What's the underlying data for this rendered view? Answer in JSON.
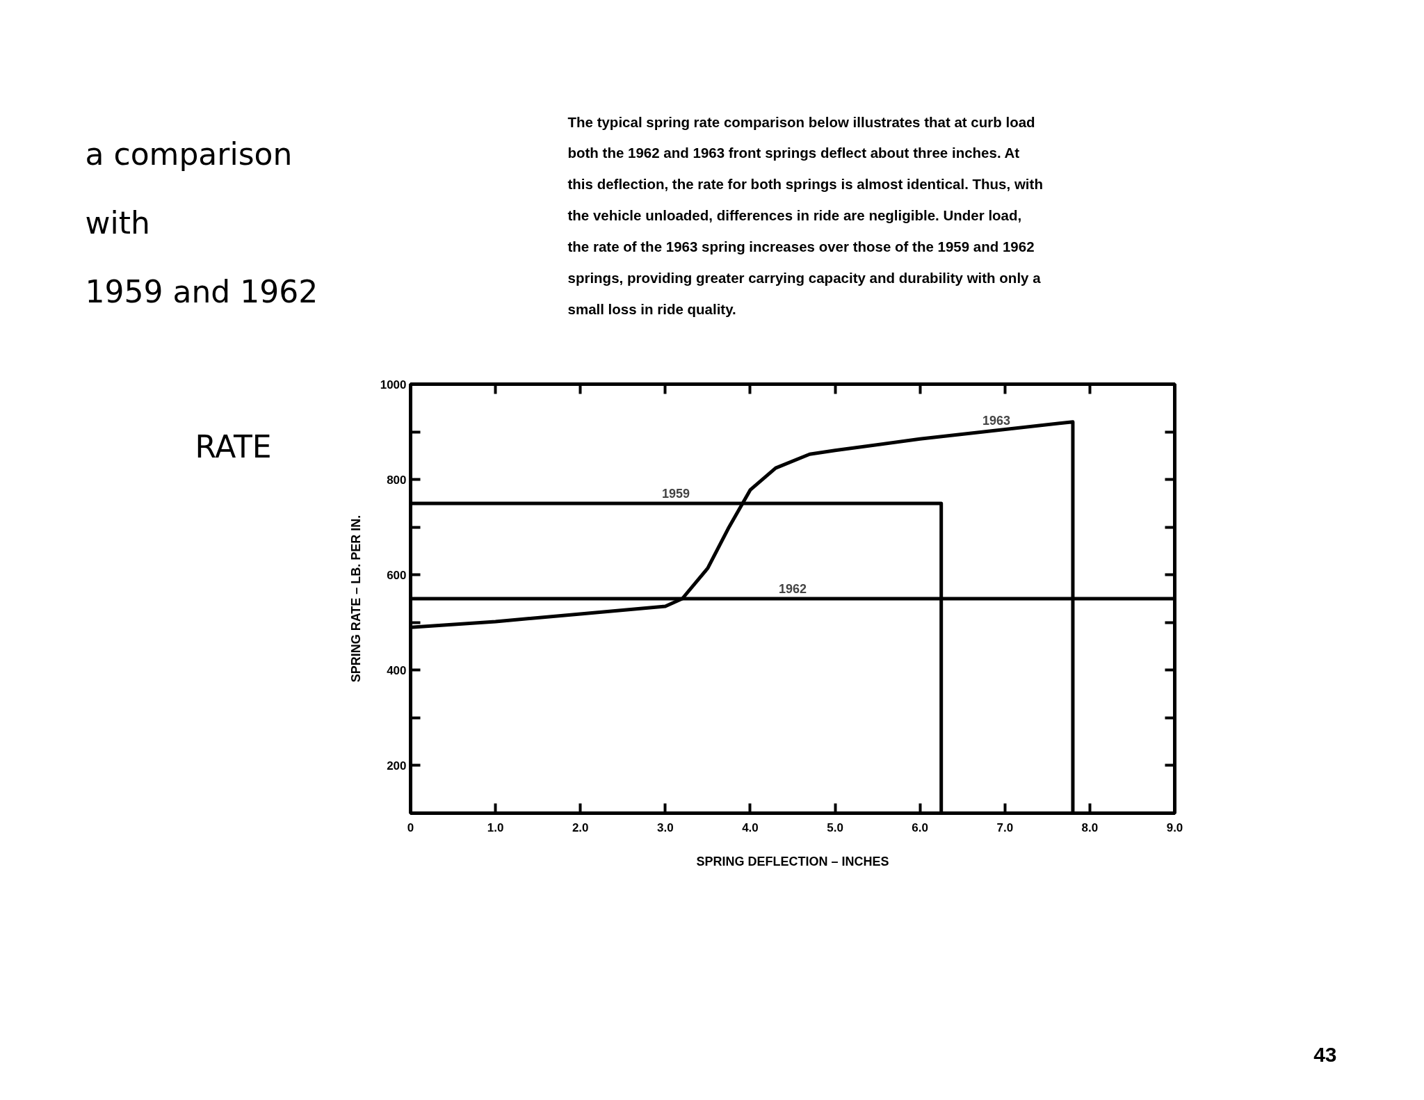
{
  "chart_data": {
    "type": "line",
    "title": "a comparison\nwith\n1959 and 1962",
    "subtitle": "The typical spring rate comparison below illustrates that at curb load\nboth the 1962 and 1963 front springs deflect about three inches.  At\nthis deflection, the rate for both springs is almost identical. Thus, with\nthe vehicle unloaded, differences in ride are negligible.  Under load,\nthe rate of the 1963 spring increases over those of the 1959 and 1962\nsprings, providing greater carrying capacity and durability with only a\nsmall loss in ride quality.",
    "xlabel": "SPRING DEFLECTION – INCHES",
    "ylabel": "SPRING RATE – LB. PER IN.",
    "annotations": [
      "RATE",
      "43"
    ],
    "xlim": [
      0,
      9
    ],
    "ylim": [
      100,
      1000
    ],
    "xticks": [
      0,
      {
        "value": 1,
        "label": "1.0"
      },
      {
        "value": 2,
        "label": "2.0"
      },
      {
        "value": 3,
        "label": "3.0"
      },
      {
        "value": 4,
        "label": "4.0"
      },
      {
        "value": 5,
        "label": "5.0"
      },
      {
        "value": 6,
        "label": "6.0"
      },
      {
        "value": 7,
        "label": "7.0"
      },
      {
        "value": 8,
        "label": "8.0"
      },
      {
        "value": 9,
        "label": "9.0"
      }
    ],
    "yticks": [
      {
        "value": 100,
        "label": null
      },
      200,
      {
        "value": 300,
        "label": null
      },
      400,
      {
        "value": 500,
        "label": null
      },
      600,
      {
        "value": 700,
        "label": null
      },
      800,
      {
        "value": 900,
        "label": null
      },
      1000
    ],
    "grid": false,
    "legend": false,
    "marker": "none",
    "line_style": "solid",
    "series": [
      {
        "name": "1959",
        "color": "#000000",
        "x": [
          0,
          6.25,
          6.25
        ],
        "values": [
          750,
          750,
          100
        ]
      },
      {
        "name": "1962",
        "color": "#000000",
        "x": [
          0,
          9
        ],
        "values": [
          550,
          550
        ]
      },
      {
        "name": "1963",
        "color": "#000000",
        "x": [
          0,
          1,
          2,
          3,
          3.2,
          3.5,
          3.75,
          4,
          4.3,
          4.7,
          5,
          6,
          7.8,
          7.8
        ],
        "values": [
          490,
          502,
          518,
          534,
          550,
          614,
          700,
          778,
          824,
          853,
          861,
          885,
          921,
          100
        ]
      }
    ]
  }
}
